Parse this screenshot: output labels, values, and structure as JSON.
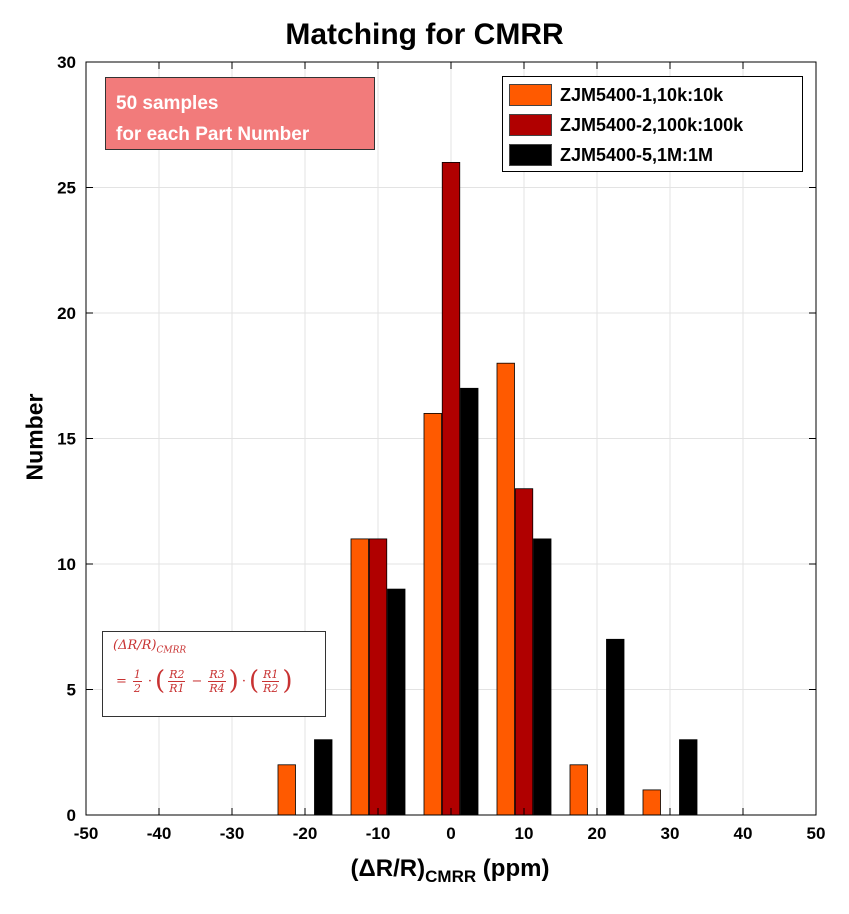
{
  "chart_data": {
    "type": "bar",
    "title": "Matching for CMRR",
    "xlabel_main": "(ΔR/R)",
    "xlabel_sub": "CMRR",
    "xlabel_unit": "(ppm)",
    "ylabel": "Number",
    "xlim": [
      -50,
      50
    ],
    "ylim": [
      0,
      30
    ],
    "xticks": [
      "-50",
      "-40",
      "-30",
      "-20",
      "-10",
      "0",
      "10",
      "20",
      "30",
      "40",
      "50"
    ],
    "yticks": [
      "0",
      "5",
      "10",
      "15",
      "20",
      "25",
      "30"
    ],
    "grid": true,
    "legend_position": "top-right",
    "categories": [
      -20,
      -10,
      0,
      10,
      20,
      30
    ],
    "series": [
      {
        "name": "ZJM5400-1,10k:10k",
        "color": "#ff5a00",
        "values": [
          2,
          11,
          16,
          18,
          2,
          1
        ]
      },
      {
        "name": "ZJM5400-2,100k:100k",
        "color": "#b00000",
        "values": [
          0,
          11,
          26,
          13,
          0,
          0
        ]
      },
      {
        "name": "ZJM5400-5,1M:1M",
        "color": "#000000",
        "values": [
          3,
          9,
          17,
          11,
          7,
          3
        ]
      }
    ]
  },
  "annotations": {
    "samples_line1": "50 samples",
    "samples_line2": "for each Part Number",
    "formula_line1": "(ΔR/R)",
    "formula_line1_sub": "CMRR",
    "formula_eq": "=",
    "formula_half_num": "1",
    "formula_half_den": "2",
    "formula_r2": "R2",
    "formula_r1": "R1",
    "formula_r3": "R3",
    "formula_r4": "R4"
  }
}
